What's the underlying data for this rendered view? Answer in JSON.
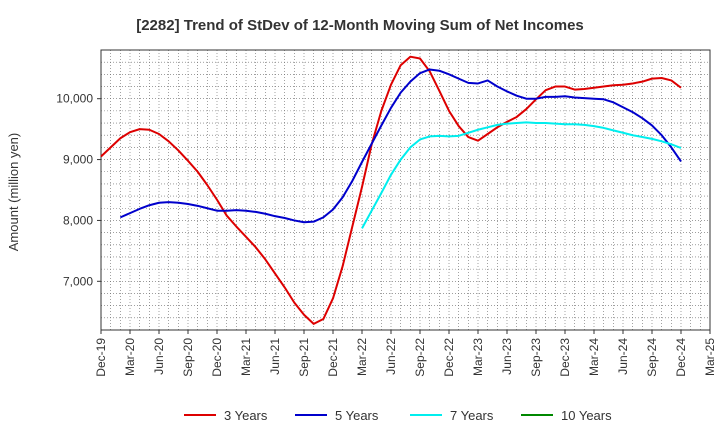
{
  "chart_data": {
    "type": "line",
    "title": "[2282]  Trend of StDev of 12-Month Moving Sum of Net Incomes",
    "xlabel": "",
    "ylabel": "Amount (million yen)",
    "ylim": [
      6200,
      10800
    ],
    "x_tick_labels": [
      "Dec-19",
      "Mar-20",
      "Jun-20",
      "Sep-20",
      "Dec-20",
      "Mar-21",
      "Jun-21",
      "Sep-21",
      "Dec-21",
      "Mar-22",
      "Jun-22",
      "Sep-22",
      "Dec-22",
      "Mar-23",
      "Jun-23",
      "Sep-23",
      "Dec-23",
      "Mar-24",
      "Jun-24",
      "Sep-24",
      "Dec-24",
      "Mar-25"
    ],
    "y_ticks": [
      7000,
      8000,
      9000,
      10000
    ],
    "y_tick_labels": [
      "7,000",
      "8,000",
      "9,000",
      "10,000"
    ],
    "grid": true,
    "legend_position": "bottom",
    "series": [
      {
        "name": "3 Years",
        "color": "#dd0000",
        "values": [
          9050,
          9200,
          9350,
          9450,
          9500,
          9490,
          9420,
          9300,
          9150,
          8980,
          8800,
          8580,
          8340,
          8080,
          7900,
          7730,
          7560,
          7360,
          7130,
          6900,
          6650,
          6450,
          6300,
          6380,
          6720,
          7250,
          7900,
          8550,
          9250,
          9800,
          10230,
          10550,
          10690,
          10660,
          10450,
          10130,
          9800,
          9550,
          9370,
          9310,
          9420,
          9530,
          9620,
          9700,
          9830,
          9990,
          10140,
          10200,
          10200,
          10150,
          10160,
          10180,
          10200,
          10220,
          10230,
          10250,
          10280,
          10330,
          10340,
          10300,
          10180
        ]
      },
      {
        "name": "5 Years",
        "color": "#0000cc",
        "values": [
          null,
          null,
          8050,
          8120,
          8190,
          8250,
          8290,
          8300,
          8290,
          8270,
          8240,
          8200,
          8160,
          8160,
          8170,
          8160,
          8140,
          8110,
          8070,
          8040,
          8000,
          7970,
          7980,
          8050,
          8180,
          8380,
          8650,
          8960,
          9260,
          9560,
          9850,
          10100,
          10280,
          10420,
          10480,
          10460,
          10400,
          10330,
          10260,
          10250,
          10300,
          10200,
          10120,
          10050,
          10000,
          10000,
          10030,
          10030,
          10040,
          10020,
          10010,
          10000,
          9990,
          9940,
          9860,
          9780,
          9680,
          9560,
          9400,
          9200,
          8970
        ]
      },
      {
        "name": "7 Years",
        "color": "#00eeee",
        "values": [
          null,
          null,
          null,
          null,
          null,
          null,
          null,
          null,
          null,
          null,
          null,
          null,
          null,
          null,
          null,
          null,
          null,
          null,
          null,
          null,
          null,
          null,
          null,
          null,
          null,
          null,
          null,
          7870,
          8160,
          8450,
          8750,
          9000,
          9200,
          9330,
          9380,
          9390,
          9380,
          9390,
          9440,
          9490,
          9530,
          9570,
          9590,
          9600,
          9610,
          9600,
          9600,
          9590,
          9580,
          9580,
          9570,
          9550,
          9520,
          9480,
          9440,
          9400,
          9370,
          9340,
          9300,
          9250,
          9190
        ]
      },
      {
        "name": "10 Years",
        "color": "#008800",
        "values": []
      }
    ]
  }
}
